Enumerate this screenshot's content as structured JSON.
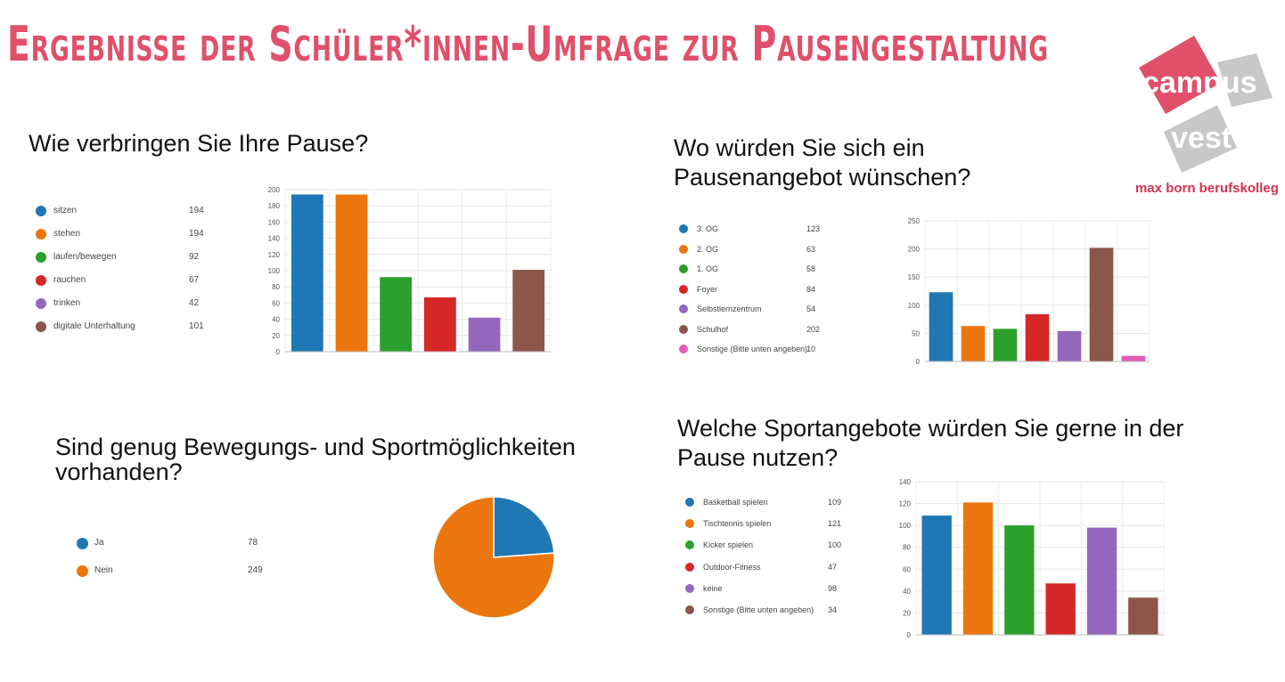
{
  "header": {
    "title": "Ergebnisse der Schüler*innen-Umfrage zur Pausengestaltung"
  },
  "logo": {
    "line1": "campus",
    "line2": "vest",
    "subtitle": "max born berufskolleg",
    "colors": {
      "red": "#e0506a",
      "gray": "#c8c8c8"
    }
  },
  "colors": [
    "#1f77b4",
    "#ec760e",
    "#2ca02c",
    "#d62728",
    "#9467bd",
    "#8c564b",
    "#e05cb6"
  ],
  "chart_data": [
    {
      "type": "bar",
      "question": "Wie verbringen Sie Ihre Pause?",
      "categories": [
        "sitzen",
        "stehen",
        "laufen/bewegen",
        "rauchen",
        "trinken",
        "digitale Unterhaltung"
      ],
      "values": [
        194,
        194,
        92,
        67,
        42,
        101
      ],
      "ylim": [
        0,
        200
      ],
      "yticks": [
        0,
        20,
        40,
        60,
        80,
        100,
        120,
        140,
        160,
        180,
        200
      ],
      "grid": true
    },
    {
      "type": "bar",
      "question": "Wo würden Sie sich ein Pausenangebot wünschen?",
      "categories": [
        "3. OG",
        "2. OG",
        "1. OG",
        "Foyer",
        "Selbstlernzentrum",
        "Schulhof",
        "Sonstige (Bitte unten angeben)"
      ],
      "values": [
        123,
        63,
        58,
        84,
        54,
        202,
        10
      ],
      "ylim": [
        0,
        250
      ],
      "yticks": [
        0,
        50,
        100,
        150,
        200,
        250
      ],
      "grid": true
    },
    {
      "type": "pie",
      "question": "Sind genug Bewegungs- und Sportmöglichkeiten vorhanden?",
      "categories": [
        "Ja",
        "Nein"
      ],
      "values": [
        78,
        249
      ]
    },
    {
      "type": "bar",
      "question": "Welche Sportangebote würden Sie gerne in der Pause nutzen?",
      "categories": [
        "Basketball spielen",
        "Tischtennis spielen",
        "Kicker spielen",
        "Outdoor-Fitness",
        "keine",
        "Sonstige (Bitte unten angeben)"
      ],
      "values": [
        109,
        121,
        100,
        47,
        98,
        34
      ],
      "ylim": [
        0,
        140
      ],
      "yticks": [
        0,
        20,
        40,
        60,
        80,
        100,
        120,
        140
      ],
      "grid": true
    }
  ]
}
